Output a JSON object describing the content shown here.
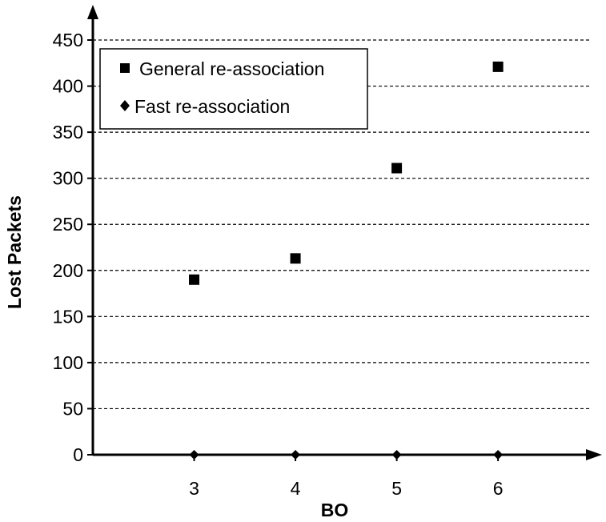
{
  "chart_data": {
    "type": "scatter",
    "title": "",
    "xlabel": "BO",
    "ylabel": "Lost Packets",
    "categories": [
      "3",
      "4",
      "5",
      "6"
    ],
    "x": [
      3,
      4,
      5,
      6
    ],
    "xlim": [
      2,
      6.9
    ],
    "ylim": [
      0,
      450
    ],
    "yticks": [
      "0",
      "50",
      "100",
      "150",
      "200",
      "250",
      "300",
      "350",
      "400",
      "450"
    ],
    "grid": "horizontal-dashed",
    "legend_position": "top-left",
    "series": [
      {
        "name": "General re-association",
        "marker": "square",
        "color": "#000000",
        "values": [
          190,
          213,
          311,
          421
        ]
      },
      {
        "name": "Fast re-association",
        "marker": "diamond",
        "color": "#000000",
        "values": [
          0,
          0,
          0,
          0
        ]
      }
    ]
  }
}
